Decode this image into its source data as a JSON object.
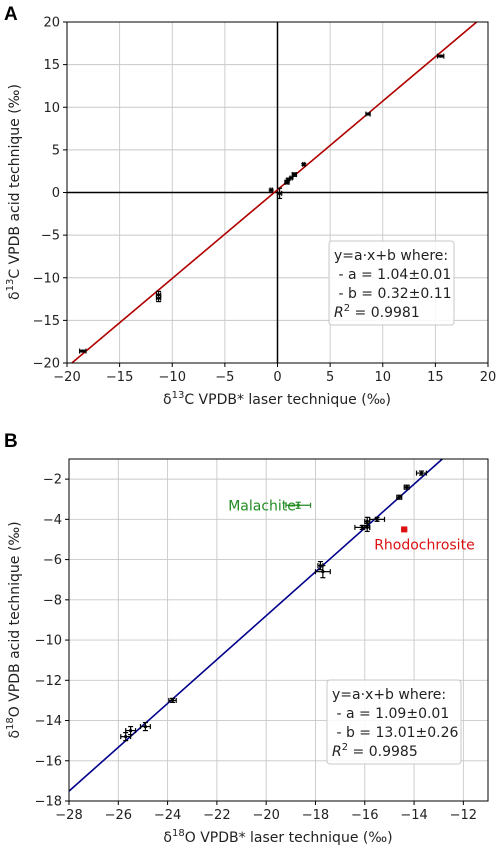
{
  "chart_data": [
    {
      "panel": "A",
      "type": "scatter",
      "xlabel_prefix": "δ",
      "xlabel_sup": "13",
      "xlabel_rest": "C VPDB* laser technique (‰)",
      "ylabel_prefix": "δ",
      "ylabel_sup": "13",
      "ylabel_rest": "C VPDB acid technique (‰)",
      "xlim": [
        -20,
        20
      ],
      "ylim": [
        -20,
        20
      ],
      "xticks": [
        -20,
        -15,
        -10,
        -5,
        0,
        5,
        10,
        15,
        20
      ],
      "yticks": [
        -20,
        -15,
        -10,
        -5,
        0,
        5,
        10,
        15,
        20
      ],
      "grid": true,
      "zero_lines": true,
      "fit": {
        "slope": 1.04,
        "intercept": 0.32,
        "color": "#b00000"
      },
      "annotation": {
        "line1": "y=a·x+b where:",
        "line2": " - a = 1.04±0.01",
        "line3": " - b = 0.32±0.11",
        "r2_label": "R",
        "r2_value": " = 0.9981",
        "position": "lower-right"
      },
      "series": [
        {
          "points": [
            {
              "x": -18.5,
              "y": -18.6,
              "xerr": 0.3,
              "yerr": 0.1
            },
            {
              "x": -11.3,
              "y": -12.0,
              "xerr": 0.2,
              "yerr": 0.4
            },
            {
              "x": -11.3,
              "y": -12.4,
              "xerr": 0.2,
              "yerr": 0.4
            },
            {
              "x": -0.6,
              "y": 0.3,
              "xerr": 0.1,
              "yerr": 0.1
            },
            {
              "x": 0.2,
              "y": -0.1,
              "xerr": 0.2,
              "yerr": 0.6
            },
            {
              "x": 0.9,
              "y": 1.2,
              "xerr": 0.2,
              "yerr": 0.2
            },
            {
              "x": 1.0,
              "y": 1.5,
              "xerr": 0.1,
              "yerr": 0.1
            },
            {
              "x": 1.3,
              "y": 1.7,
              "xerr": 0.1,
              "yerr": 0.1
            },
            {
              "x": 1.6,
              "y": 2.1,
              "xerr": 0.2,
              "yerr": 0.2
            },
            {
              "x": 2.5,
              "y": 3.3,
              "xerr": 0.1,
              "yerr": 0.1
            },
            {
              "x": 8.6,
              "y": 9.2,
              "xerr": 0.2,
              "yerr": 0.1
            },
            {
              "x": 15.5,
              "y": 16.0,
              "xerr": 0.3,
              "yerr": 0.1
            }
          ],
          "color": "#000000"
        }
      ]
    },
    {
      "panel": "B",
      "type": "scatter",
      "xlabel_prefix": "δ",
      "xlabel_sup": "18",
      "xlabel_rest": "O VPDB* laser technique (‰)",
      "ylabel_prefix": "δ",
      "ylabel_sup": "18",
      "ylabel_rest": "O VPDB acid technique (‰)",
      "xlim": [
        -28,
        -11
      ],
      "ylim": [
        -18,
        -1
      ],
      "xticks": [
        -28,
        -26,
        -24,
        -22,
        -20,
        -18,
        -16,
        -14,
        -12
      ],
      "yticks": [
        -18,
        -16,
        -14,
        -12,
        -10,
        -8,
        -6,
        -4,
        -2
      ],
      "grid": true,
      "fit": {
        "slope": 1.09,
        "intercept": 13.01,
        "color": "#00008b"
      },
      "annotation": {
        "line1": "y=a·x+b where:",
        "line2": " - a = 1.09±0.01",
        "line3": " - b = 13.01±0.26",
        "r2_label": "R",
        "r2_value": " = 0.9985",
        "position": "lower-right"
      },
      "series": [
        {
          "points": [
            {
              "x": -25.7,
              "y": -14.8,
              "xerr": 0.2,
              "yerr": 0.2
            },
            {
              "x": -25.5,
              "y": -14.5,
              "xerr": 0.2,
              "yerr": 0.2
            },
            {
              "x": -24.9,
              "y": -14.3,
              "xerr": 0.2,
              "yerr": 0.2
            },
            {
              "x": -23.8,
              "y": -13.0,
              "xerr": 0.15,
              "yerr": 0.1
            },
            {
              "x": -17.8,
              "y": -6.3,
              "xerr": 0.1,
              "yerr": 0.2
            },
            {
              "x": -17.7,
              "y": -6.6,
              "xerr": 0.3,
              "yerr": 0.3
            },
            {
              "x": -16.1,
              "y": -4.4,
              "xerr": 0.3,
              "yerr": 0.1
            },
            {
              "x": -15.9,
              "y": -4.1,
              "xerr": 0.1,
              "yerr": 0.2
            },
            {
              "x": -15.9,
              "y": -4.4,
              "xerr": 0.1,
              "yerr": 0.2
            },
            {
              "x": -15.5,
              "y": -4.0,
              "xerr": 0.3,
              "yerr": 0.1
            },
            {
              "x": -14.6,
              "y": -2.9,
              "xerr": 0.1,
              "yerr": 0.1
            },
            {
              "x": -14.3,
              "y": -2.4,
              "xerr": 0.1,
              "yerr": 0.1
            },
            {
              "x": -13.7,
              "y": -1.7,
              "xerr": 0.2,
              "yerr": 0.1
            }
          ],
          "color": "#000000"
        },
        {
          "name": "Malachite",
          "points": [
            {
              "x": -18.7,
              "y": -3.3,
              "xerr": 0.5,
              "yerr": 0.15
            }
          ],
          "color": "#228b22",
          "label_offset": [
            -70,
            5
          ]
        },
        {
          "name": "Rhodochrosite",
          "points": [
            {
              "x": -14.4,
              "y": -4.5,
              "xerr": 0.1,
              "yerr": 0.1
            }
          ],
          "color": "#dd1111",
          "marker": "square",
          "label_offset": [
            -30,
            20
          ]
        }
      ]
    }
  ]
}
